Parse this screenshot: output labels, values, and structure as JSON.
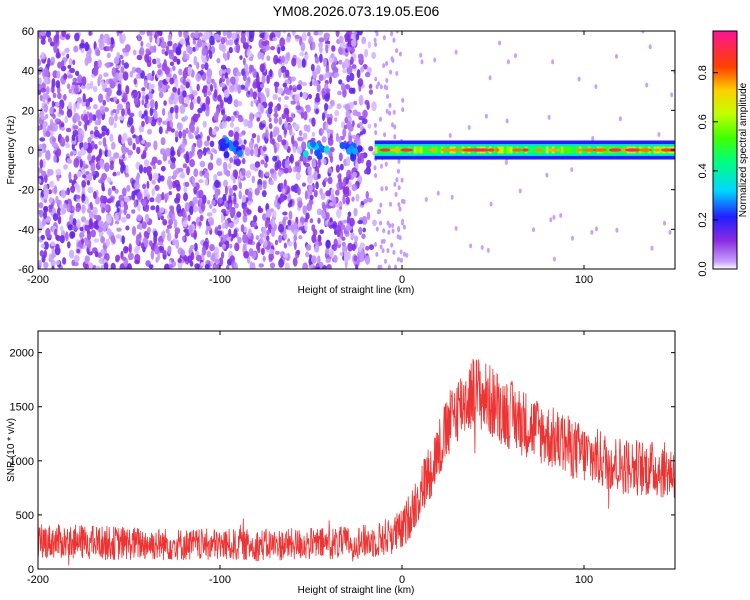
{
  "figure_title": "YM08.2026.073.19.05.E06",
  "chart_data": [
    {
      "type": "heatmap",
      "xlabel": "Height of straight line (km)",
      "ylabel": "Frequency (Hz)",
      "xlim": [
        -200,
        150
      ],
      "ylim": [
        -60,
        60
      ],
      "xticks": [
        "-200",
        "-100",
        "0",
        "100"
      ],
      "yticks": [
        "-60",
        "-40",
        "-20",
        "0",
        "20",
        "40",
        "60"
      ],
      "colorbar": {
        "label": "Normalized spectral amplitude",
        "range": [
          0,
          0.97
        ],
        "ticks": [
          "0.0",
          "0.2",
          "0.4",
          "0.6",
          "0.8"
        ],
        "colormap": "rainbow (purple-blue-cyan-green-yellow-red-pink)"
      },
      "description_of_field": {
        "noise_region_x": [
          -200,
          -15
        ],
        "noise_amplitude_range": [
          0.0,
          0.15
        ],
        "signal_band_x": [
          -15,
          150
        ],
        "signal_band_center_hz": 0,
        "signal_band_halfwidth_hz": 3,
        "signal_peak_amplitude": 0.95,
        "blobs": [
          {
            "x": -95,
            "y": 2,
            "amplitude": 0.3
          },
          {
            "x": -48,
            "y": 1,
            "amplitude": 0.35
          },
          {
            "x": -27,
            "y": 0,
            "amplitude": 0.3
          }
        ]
      },
      "grid": false
    },
    {
      "type": "line",
      "xlabel": "Height of straight line (km)",
      "ylabel": "SNR (10 * v/v)",
      "xlim": [
        -200,
        150
      ],
      "ylim": [
        0,
        2200
      ],
      "xticks": [
        "-200",
        "-100",
        "0",
        "100"
      ],
      "yticks": [
        "0",
        "500",
        "1000",
        "1500",
        "2000"
      ],
      "series": [
        {
          "color": "#ee3333",
          "envelope_x": [
            -200,
            -160,
            -120,
            -80,
            -40,
            -15,
            0,
            10,
            20,
            30,
            40,
            60,
            80,
            100,
            120,
            150
          ],
          "envelope_mean": [
            260,
            240,
            225,
            220,
            235,
            260,
            350,
            700,
            1100,
            1480,
            1650,
            1420,
            1230,
            1060,
            960,
            900
          ],
          "envelope_halfwidth": [
            160,
            160,
            150,
            150,
            150,
            160,
            200,
            250,
            300,
            320,
            350,
            330,
            300,
            280,
            270,
            260
          ]
        }
      ],
      "grid": false
    }
  ]
}
